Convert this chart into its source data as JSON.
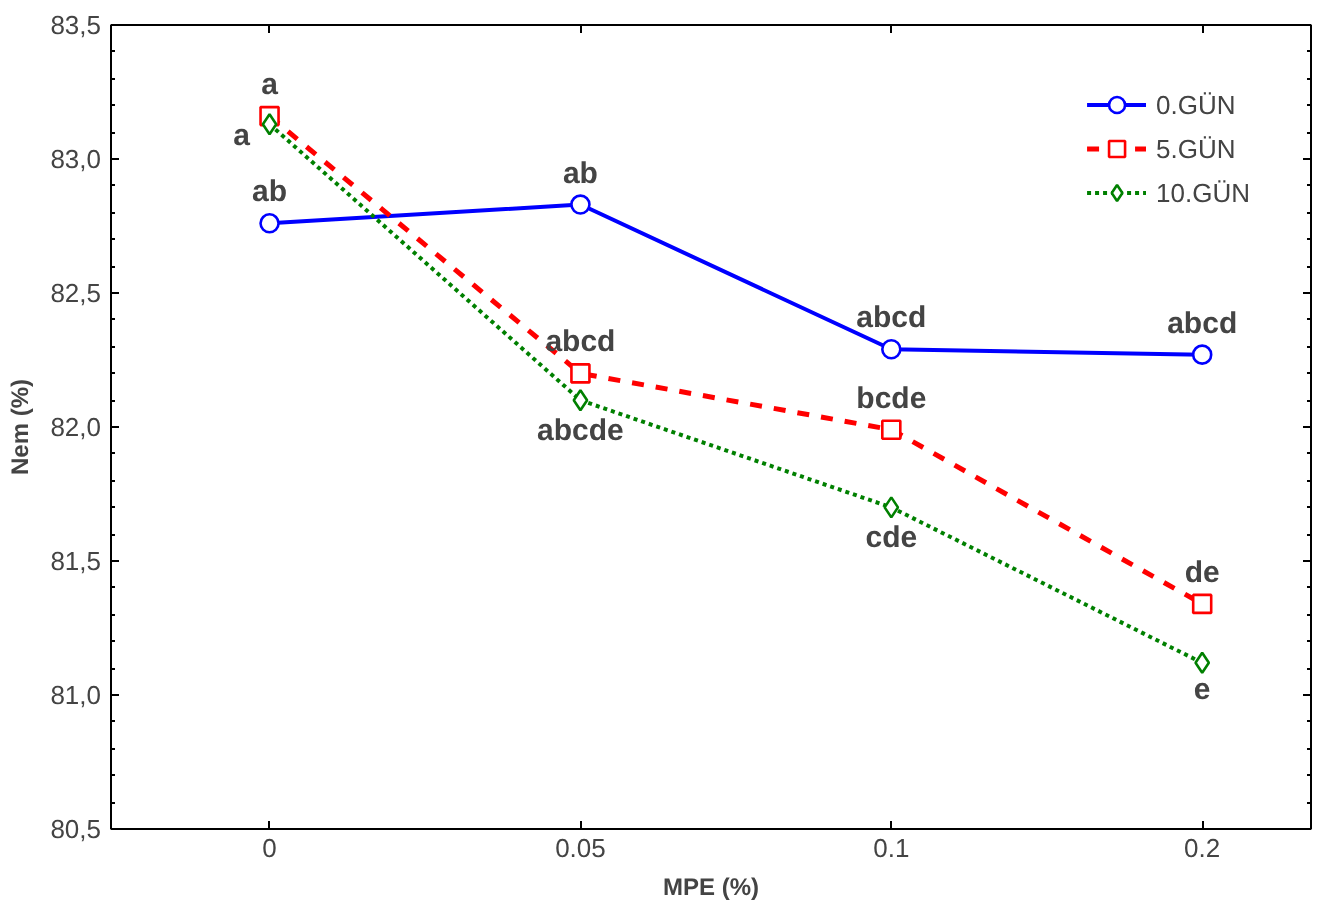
{
  "chart_data": {
    "type": "line",
    "xlabel": "MPE (%)",
    "ylabel": "Nem (%)",
    "categories": [
      "0",
      "0.05",
      "0.1",
      "0.2"
    ],
    "series": [
      {
        "name": "0.GÜN",
        "color": "#0000ff",
        "values": [
          82.76,
          82.83,
          82.29,
          82.27
        ],
        "marker": "circle",
        "line_style": "solid"
      },
      {
        "name": "5.GÜN",
        "color": "#ff0000",
        "values": [
          83.16,
          82.2,
          81.99,
          81.34
        ],
        "marker": "square",
        "line_style": "dashed"
      },
      {
        "name": "10.GÜN",
        "color": "#008000",
        "values": [
          83.13,
          82.1,
          81.7,
          81.12
        ],
        "marker": "diamond",
        "line_style": "dotted"
      }
    ],
    "ylim": [
      80.5,
      83.5
    ],
    "yticks": [
      {
        "value": 80.5,
        "label": "80,5"
      },
      {
        "value": 81.0,
        "label": "81,0"
      },
      {
        "value": 81.5,
        "label": "81,5"
      },
      {
        "value": 82.0,
        "label": "82,0"
      },
      {
        "value": 82.5,
        "label": "82,5"
      },
      {
        "value": 83.0,
        "label": "83,0"
      },
      {
        "value": 83.5,
        "label": "83,5"
      }
    ],
    "annotations": [
      {
        "text": "ab",
        "x": "0",
        "y": 82.76
      },
      {
        "text": "ab",
        "x": "0.05",
        "y": 82.83
      },
      {
        "text": "abcd",
        "x": "0.1",
        "y": 82.29
      },
      {
        "text": "abcd",
        "x": "0.2",
        "y": 82.27
      },
      {
        "text": "a",
        "x": "0",
        "y": 83.16
      },
      {
        "text": "abcd",
        "x": "0.05",
        "y": 82.2
      },
      {
        "text": "bcde",
        "x": "0.1",
        "y": 81.99
      },
      {
        "text": "de",
        "x": "0.2",
        "y": 81.34
      },
      {
        "text": "a",
        "x": "0",
        "y": 83.13
      },
      {
        "text": "abcde",
        "x": "0.05",
        "y": 82.1
      },
      {
        "text": "cde",
        "x": "0.1",
        "y": 81.7
      },
      {
        "text": "e",
        "x": "0.2",
        "y": 81.12
      }
    ],
    "grid": false,
    "legend": "top right"
  }
}
